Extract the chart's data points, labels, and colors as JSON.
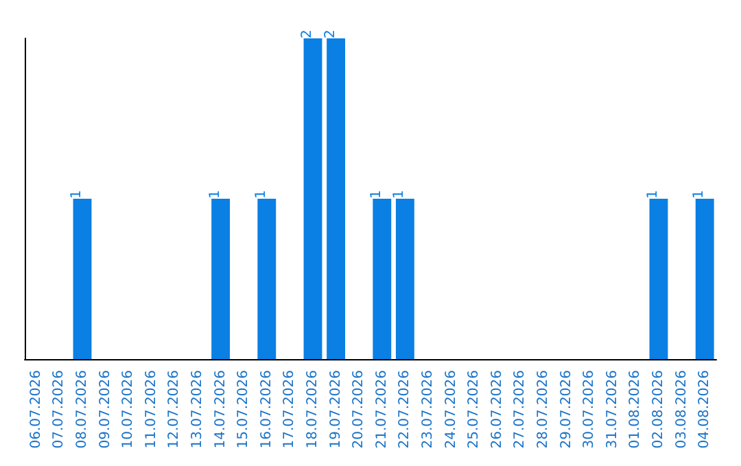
{
  "chart_data": {
    "type": "bar",
    "categories": [
      "06.07.2026",
      "07.07.2026",
      "08.07.2026",
      "09.07.2026",
      "10.07.2026",
      "11.07.2026",
      "12.07.2026",
      "13.07.2026",
      "14.07.2026",
      "15.07.2026",
      "16.07.2026",
      "17.07.2026",
      "18.07.2026",
      "19.07.2026",
      "20.07.2026",
      "21.07.2026",
      "22.07.2026",
      "23.07.2026",
      "24.07.2026",
      "25.07.2026",
      "26.07.2026",
      "27.07.2026",
      "28.07.2026",
      "29.07.2026",
      "30.07.2026",
      "31.07.2026",
      "01.08.2026",
      "02.08.2026",
      "03.08.2026",
      "04.08.2026"
    ],
    "values": [
      0,
      0,
      1,
      0,
      0,
      0,
      0,
      0,
      1,
      0,
      1,
      0,
      2,
      2,
      0,
      1,
      1,
      0,
      0,
      0,
      0,
      0,
      0,
      0,
      0,
      0,
      0,
      1,
      0,
      1
    ],
    "value_labels": [
      null,
      null,
      "1",
      null,
      null,
      null,
      null,
      null,
      "1",
      null,
      "1",
      null,
      "2",
      "2",
      null,
      "1",
      "1",
      null,
      null,
      null,
      null,
      null,
      null,
      null,
      null,
      null,
      null,
      "1",
      null,
      "1"
    ],
    "color": "#0a7fe4",
    "ylim": [
      0,
      2
    ],
    "tick_labels": "x",
    "grid": false
  }
}
